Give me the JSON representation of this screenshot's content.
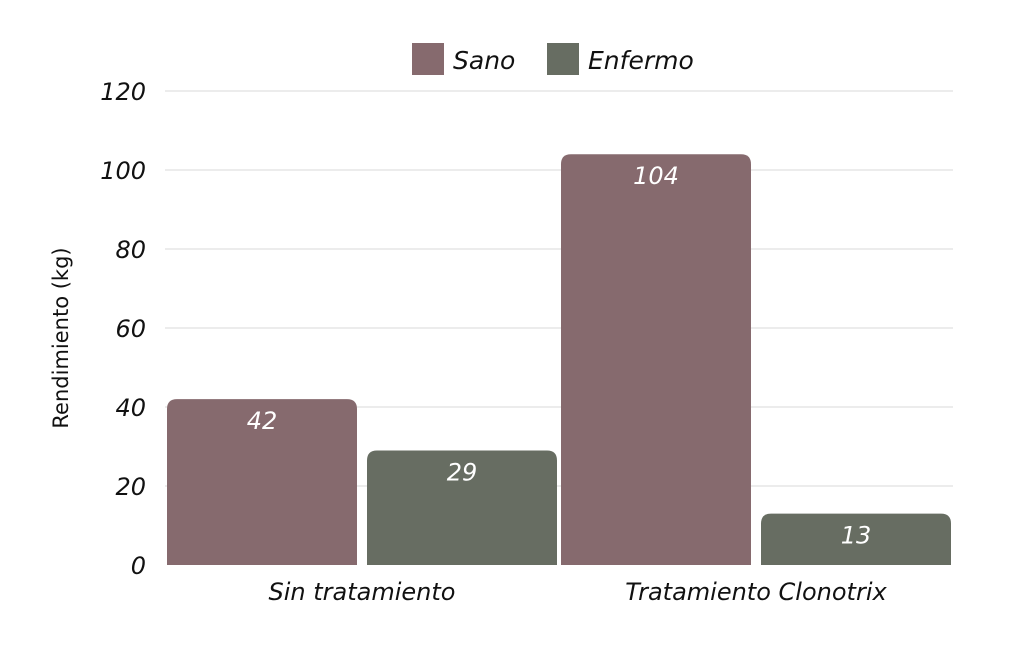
{
  "chart_data": {
    "type": "bar",
    "categories": [
      "Sin tratamiento",
      "Tratamiento Clonotrix"
    ],
    "series": [
      {
        "name": "Sano",
        "values": [
          42,
          104
        ],
        "color": "#866a6e"
      },
      {
        "name": "Enfermo",
        "values": [
          29,
          13
        ],
        "color": "#676d62"
      }
    ],
    "ylabel": "Rendimiento (kg)",
    "xlabel": "",
    "ylim": [
      0,
      120
    ],
    "yticks": [
      0,
      20,
      40,
      60,
      80,
      100,
      120
    ],
    "grid": true,
    "legend": "top-center",
    "data_labels": true
  }
}
